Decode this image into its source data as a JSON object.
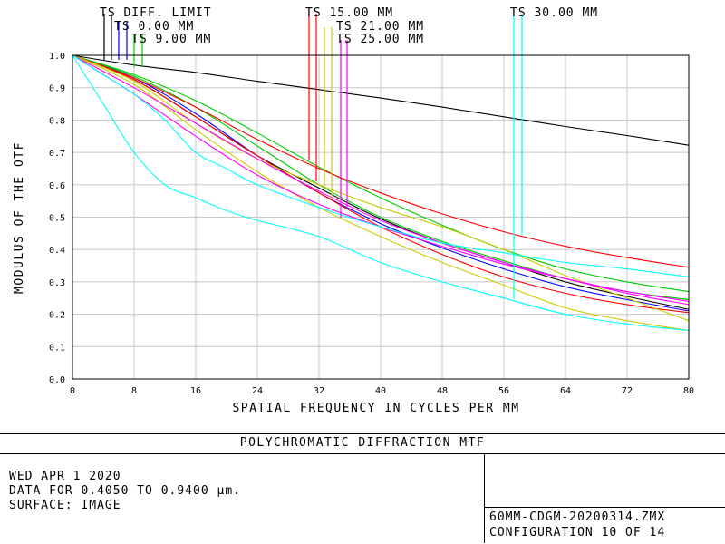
{
  "chart_data": {
    "type": "line",
    "title": "POLYCHROMATIC DIFFRACTION MTF",
    "xlabel": "SPATIAL FREQUENCY IN CYCLES PER MM",
    "ylabel": "MODULUS OF THE OTF",
    "xlim": [
      0,
      80
    ],
    "ylim": [
      0,
      1.0
    ],
    "x_ticks": [
      0,
      8,
      16,
      24,
      32,
      40,
      48,
      56,
      64,
      72,
      80
    ],
    "y_ticks": [
      0.0,
      0.1,
      0.2,
      0.3,
      0.4,
      0.5,
      0.6,
      0.7,
      0.8,
      0.9,
      1.0
    ],
    "grid": true,
    "legend": [
      {
        "label": "TS DIFF. LIMIT",
        "color": "#000000"
      },
      {
        "label": "TS 0.00 MM",
        "color": "#0000ff"
      },
      {
        "label": "TS 9.00 MM",
        "color": "#00cc00"
      },
      {
        "label": "TS 15.00 MM",
        "color": "#ff0000"
      },
      {
        "label": "TS 21.00 MM",
        "color": "#cccc00"
      },
      {
        "label": "TS 25.00 MM",
        "color": "#ff00ff"
      },
      {
        "label": "TS 30.00 MM",
        "color": "#00ffff"
      }
    ],
    "series": [
      {
        "name": "TS DIFF. LIMIT",
        "color": "#000000",
        "x": [
          0,
          8,
          16,
          24,
          32,
          40,
          48,
          56,
          64,
          72,
          80
        ],
        "y": [
          1.0,
          0.97,
          0.947,
          0.92,
          0.894,
          0.868,
          0.84,
          0.81,
          0.78,
          0.752,
          0.722
        ]
      },
      {
        "name": "TS 0.00 MM T",
        "color": "#000000",
        "x": [
          0,
          8,
          16,
          24,
          32,
          40,
          48,
          56,
          64,
          72,
          80
        ],
        "y": [
          1.0,
          0.925,
          0.81,
          0.69,
          0.59,
          0.495,
          0.42,
          0.36,
          0.3,
          0.255,
          0.215
        ]
      },
      {
        "name": "TS 0.00 MM S",
        "color": "#0000ff",
        "x": [
          0,
          8,
          16,
          24,
          32,
          40,
          48,
          56,
          64,
          72,
          80
        ],
        "y": [
          1.0,
          0.93,
          0.82,
          0.69,
          0.575,
          0.48,
          0.405,
          0.34,
          0.285,
          0.245,
          0.21
        ]
      },
      {
        "name": "TS 9.00 MM T",
        "color": "#00cc00",
        "x": [
          0,
          8,
          16,
          24,
          32,
          40,
          48,
          56,
          64,
          72,
          80
        ],
        "y": [
          1.0,
          0.94,
          0.86,
          0.76,
          0.655,
          0.56,
          0.475,
          0.4,
          0.34,
          0.3,
          0.27
        ]
      },
      {
        "name": "TS 9.00 MM S",
        "color": "#00cc00",
        "x": [
          0,
          8,
          16,
          24,
          32,
          40,
          48,
          56,
          64,
          72,
          80
        ],
        "y": [
          1.0,
          0.935,
          0.84,
          0.72,
          0.6,
          0.5,
          0.425,
          0.365,
          0.31,
          0.27,
          0.245
        ]
      },
      {
        "name": "TS 15.00 MM T",
        "color": "#ff0000",
        "x": [
          0,
          8,
          16,
          24,
          32,
          40,
          48,
          56,
          64,
          72,
          80
        ],
        "y": [
          1.0,
          0.93,
          0.84,
          0.74,
          0.65,
          0.575,
          0.51,
          0.455,
          0.41,
          0.375,
          0.345
        ]
      },
      {
        "name": "TS 15.00 MM S",
        "color": "#ff0000",
        "x": [
          0,
          8,
          16,
          24,
          32,
          40,
          48,
          56,
          64,
          72,
          80
        ],
        "y": [
          1.0,
          0.925,
          0.81,
          0.69,
          0.575,
          0.47,
          0.385,
          0.315,
          0.265,
          0.23,
          0.205
        ]
      },
      {
        "name": "TS 21.00 MM T",
        "color": "#cccc00",
        "x": [
          0,
          8,
          16,
          24,
          32,
          40,
          48,
          56,
          64,
          72,
          80
        ],
        "y": [
          1.0,
          0.92,
          0.79,
          0.68,
          0.6,
          0.53,
          0.47,
          0.4,
          0.32,
          0.25,
          0.18
        ]
      },
      {
        "name": "TS 21.00 MM S",
        "color": "#cccc00",
        "x": [
          0,
          8,
          16,
          24,
          32,
          40,
          48,
          56,
          64,
          72,
          80
        ],
        "y": [
          1.0,
          0.91,
          0.77,
          0.64,
          0.53,
          0.44,
          0.36,
          0.29,
          0.22,
          0.18,
          0.15
        ]
      },
      {
        "name": "TS 25.00 MM T",
        "color": "#ff00ff",
        "x": [
          0,
          8,
          16,
          24,
          32,
          40,
          48,
          56,
          64,
          72,
          80
        ],
        "y": [
          1.0,
          0.9,
          0.79,
          0.68,
          0.58,
          0.49,
          0.42,
          0.36,
          0.31,
          0.265,
          0.23
        ]
      },
      {
        "name": "TS 25.00 MM S",
        "color": "#ff00ff",
        "x": [
          0,
          8,
          16,
          24,
          32,
          40,
          48,
          56,
          64,
          72,
          80
        ],
        "y": [
          1.0,
          0.88,
          0.75,
          0.63,
          0.54,
          0.47,
          0.41,
          0.355,
          0.31,
          0.27,
          0.24
        ]
      },
      {
        "name": "TS 30.00 MM T",
        "color": "#00ffff",
        "x": [
          0,
          4,
          8,
          12,
          16,
          20,
          24,
          32,
          40,
          48,
          56,
          64,
          72,
          80
        ],
        "y": [
          1.0,
          0.94,
          0.88,
          0.8,
          0.7,
          0.65,
          0.6,
          0.53,
          0.47,
          0.42,
          0.39,
          0.36,
          0.34,
          0.315
        ]
      },
      {
        "name": "TS 30.00 MM S",
        "color": "#00ffff",
        "x": [
          0,
          4,
          8,
          12,
          16,
          20,
          24,
          32,
          40,
          48,
          56,
          64,
          72,
          80
        ],
        "y": [
          1.0,
          0.85,
          0.7,
          0.6,
          0.56,
          0.52,
          0.49,
          0.44,
          0.36,
          0.3,
          0.25,
          0.2,
          0.17,
          0.15
        ]
      }
    ]
  },
  "info": {
    "date": "WED APR 1 2020",
    "data_line": "DATA FOR 0.4050 TO 0.9400 µm.",
    "surface": "SURFACE: IMAGE",
    "filename": "60MM-CDGM-20200314.ZMX",
    "configuration": "CONFIGURATION 10 OF 14"
  }
}
